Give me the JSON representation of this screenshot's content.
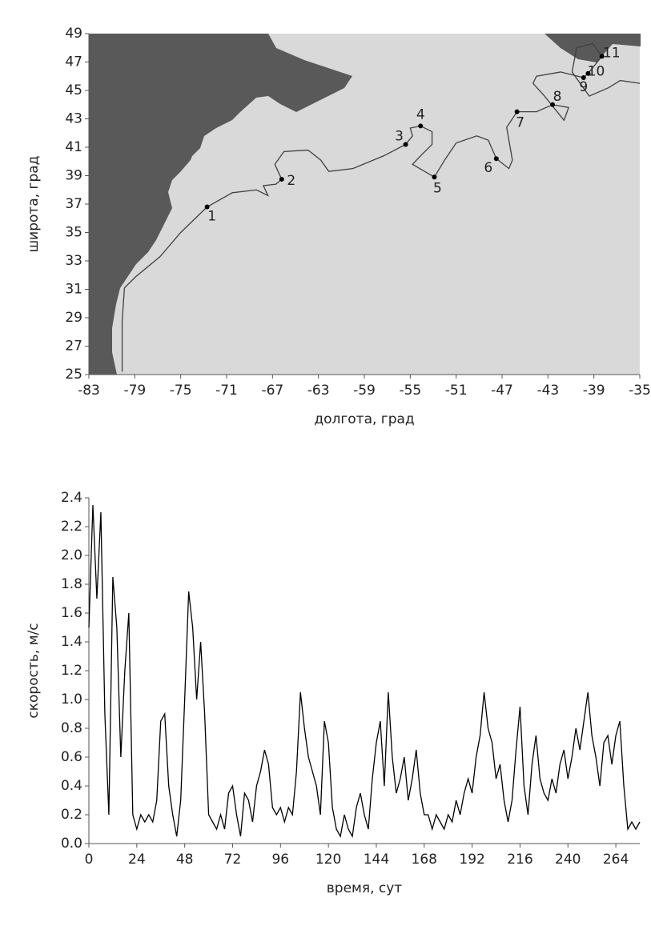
{
  "chart_data": [
    {
      "type": "line",
      "x_label": "долгота, град",
      "y_label": "широта, град",
      "color": "#404040",
      "xlim": [
        -83,
        -35
      ],
      "ylim": [
        25,
        49
      ],
      "xticks": [
        -83,
        -79,
        -75,
        -71,
        -67,
        -63,
        -59,
        -55,
        -51,
        -47,
        -43,
        -39,
        -35
      ],
      "yticks": [
        25,
        27,
        29,
        31,
        33,
        35,
        37,
        39,
        41,
        43,
        45,
        47,
        49
      ],
      "x": [
        -80.1,
        -80.1,
        -79.9,
        -78.9,
        -76.8,
        -75.0,
        -72.7,
        -70.5,
        -68.4,
        -67.4,
        -67.8,
        -66.7,
        -66.2,
        -66.8,
        -66.0,
        -63.9,
        -62.8,
        -62.1,
        -60.0,
        -57.3,
        -55.4,
        -54.8,
        -55.0,
        -54.1,
        -53.1,
        -53.1,
        -54.1,
        -54.8,
        -52.9,
        -52.0,
        -51.0,
        -49.2,
        -48.2,
        -47.5,
        -46.4,
        -46.1,
        -46.6,
        -45.7,
        -44.0,
        -42.6,
        -41.2,
        -41.6,
        -43.3,
        -44.3,
        -44.0,
        -41.9,
        -39.9,
        -39.5,
        -38.3,
        -39.1,
        -40.5,
        -40.9,
        -39.4,
        -37.7,
        -36.7,
        -35.0
      ],
      "values": [
        25.2,
        28.8,
        31.1,
        31.9,
        33.3,
        35.0,
        36.8,
        37.8,
        38.0,
        37.6,
        38.3,
        38.4,
        38.75,
        39.8,
        40.7,
        40.8,
        40.1,
        39.3,
        39.5,
        40.4,
        41.2,
        41.8,
        42.35,
        42.5,
        42.1,
        41.2,
        40.4,
        39.8,
        38.9,
        40.1,
        41.3,
        41.8,
        41.5,
        40.2,
        39.5,
        40.1,
        42.4,
        43.5,
        43.5,
        44.0,
        43.8,
        42.9,
        44.6,
        45.5,
        46.0,
        46.3,
        45.9,
        46.2,
        47.4,
        48.3,
        48.0,
        46.3,
        44.6,
        45.2,
        45.7,
        45.5
      ],
      "annotations": [
        {
          "text": "1",
          "x": -72.7,
          "y": 36.8
        },
        {
          "text": "2",
          "x": -66.2,
          "y": 38.75
        },
        {
          "text": "3",
          "x": -55.4,
          "y": 41.2
        },
        {
          "text": "4",
          "x": -54.1,
          "y": 42.5
        },
        {
          "text": "5",
          "x": -52.9,
          "y": 38.9
        },
        {
          "text": "6",
          "x": -47.5,
          "y": 40.2
        },
        {
          "text": "7",
          "x": -45.7,
          "y": 43.5
        },
        {
          "text": "8",
          "x": -42.6,
          "y": 44.0
        },
        {
          "text": "9",
          "x": -39.9,
          "y": 45.9
        },
        {
          "text": "10",
          "x": -39.5,
          "y": 46.2
        },
        {
          "text": "11",
          "x": -38.3,
          "y": 47.4
        }
      ]
    },
    {
      "type": "line",
      "x_label": "время, сут",
      "y_label": "скорость, м/с",
      "color": "#000000",
      "xlim": [
        0,
        276
      ],
      "ylim": [
        0,
        2.4
      ],
      "xticks": [
        0,
        24,
        48,
        72,
        96,
        120,
        144,
        168,
        192,
        216,
        240,
        264
      ],
      "yticks": [
        {
          "value": 0,
          "label": "0.0"
        },
        0.2,
        0.4,
        0.6,
        0.8,
        {
          "value": 1,
          "label": "1.0"
        },
        1.2,
        1.4,
        1.6,
        1.8,
        {
          "value": 2,
          "label": "2.0"
        },
        2.2,
        2.4
      ],
      "x": [
        0,
        2,
        4,
        6,
        8,
        10,
        12,
        14,
        16,
        18,
        20,
        22,
        24,
        26,
        28,
        30,
        32,
        34,
        36,
        38,
        40,
        42,
        44,
        46,
        48,
        50,
        52,
        54,
        56,
        58,
        60,
        62,
        64,
        66,
        68,
        70,
        72,
        74,
        76,
        78,
        80,
        82,
        84,
        86,
        88,
        90,
        92,
        94,
        96,
        98,
        100,
        102,
        104,
        106,
        108,
        110,
        112,
        114,
        116,
        118,
        120,
        122,
        124,
        126,
        128,
        130,
        132,
        134,
        136,
        138,
        140,
        142,
        144,
        146,
        148,
        150,
        152,
        154,
        156,
        158,
        160,
        162,
        164,
        166,
        168,
        170,
        172,
        174,
        176,
        178,
        180,
        182,
        184,
        186,
        188,
        190,
        192,
        194,
        196,
        198,
        200,
        202,
        204,
        206,
        208,
        210,
        212,
        214,
        216,
        218,
        220,
        222,
        224,
        226,
        228,
        230,
        232,
        234,
        236,
        238,
        240,
        242,
        244,
        246,
        248,
        250,
        252,
        254,
        256,
        258,
        260,
        262,
        264,
        266,
        268,
        270,
        272,
        274,
        276
      ],
      "values": [
        1.5,
        2.35,
        1.7,
        2.3,
        0.9,
        0.2,
        1.85,
        1.5,
        0.6,
        1.2,
        1.6,
        0.2,
        0.1,
        0.2,
        0.15,
        0.2,
        0.15,
        0.3,
        0.85,
        0.9,
        0.4,
        0.2,
        0.05,
        0.3,
        1.0,
        1.75,
        1.5,
        1.0,
        1.4,
        0.9,
        0.2,
        0.15,
        0.1,
        0.2,
        0.1,
        0.35,
        0.4,
        0.2,
        0.05,
        0.35,
        0.3,
        0.15,
        0.4,
        0.5,
        0.65,
        0.55,
        0.25,
        0.2,
        0.25,
        0.15,
        0.25,
        0.2,
        0.5,
        1.05,
        0.8,
        0.6,
        0.5,
        0.4,
        0.2,
        0.85,
        0.7,
        0.25,
        0.1,
        0.05,
        0.2,
        0.1,
        0.05,
        0.25,
        0.35,
        0.2,
        0.1,
        0.45,
        0.7,
        0.85,
        0.4,
        1.05,
        0.6,
        0.35,
        0.45,
        0.6,
        0.3,
        0.45,
        0.65,
        0.35,
        0.2,
        0.2,
        0.1,
        0.2,
        0.15,
        0.1,
        0.2,
        0.15,
        0.3,
        0.2,
        0.35,
        0.45,
        0.35,
        0.6,
        0.75,
        1.05,
        0.8,
        0.7,
        0.45,
        0.55,
        0.3,
        0.15,
        0.3,
        0.65,
        0.95,
        0.4,
        0.2,
        0.55,
        0.75,
        0.45,
        0.35,
        0.3,
        0.45,
        0.35,
        0.55,
        0.65,
        0.45,
        0.6,
        0.8,
        0.65,
        0.85,
        1.05,
        0.75,
        0.6,
        0.4,
        0.7,
        0.75,
        0.55,
        0.75,
        0.85,
        0.4,
        0.1,
        0.15,
        0.1,
        0.15
      ]
    }
  ]
}
